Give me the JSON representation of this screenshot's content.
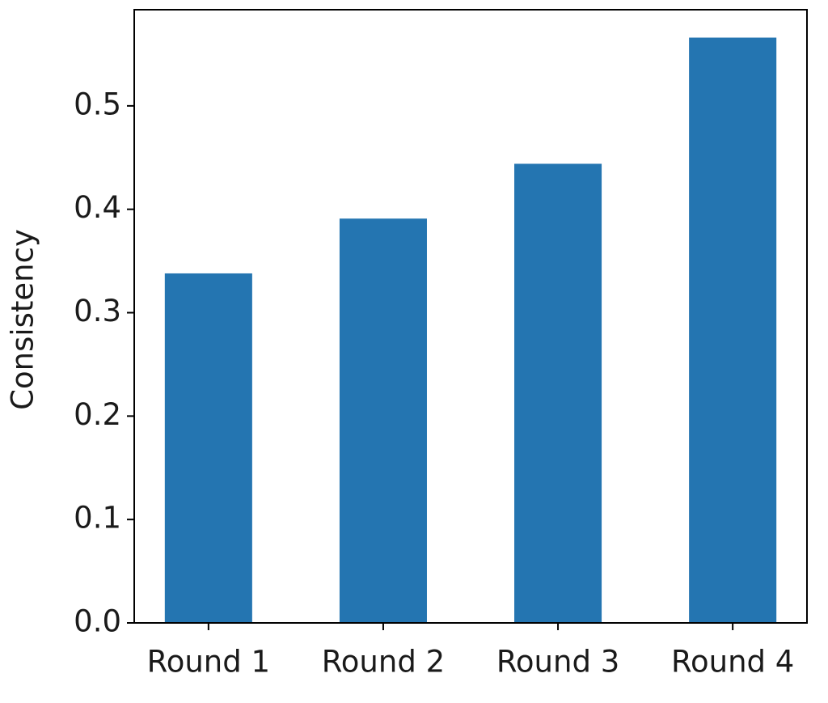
{
  "chart_data": {
    "type": "bar",
    "y_label": "Consistency",
    "categories": [
      "Round 1",
      "Round 2",
      "Round 3",
      "Round 4"
    ],
    "values": [
      0.338,
      0.391,
      0.444,
      0.566
    ],
    "color": "#2475b1",
    "ylim": [
      0,
      0.593
    ],
    "yticks": [
      {
        "value": 0,
        "label": "0.0"
      },
      0.1,
      0.2,
      0.3,
      0.4,
      0.5
    ],
    "grid": false
  }
}
